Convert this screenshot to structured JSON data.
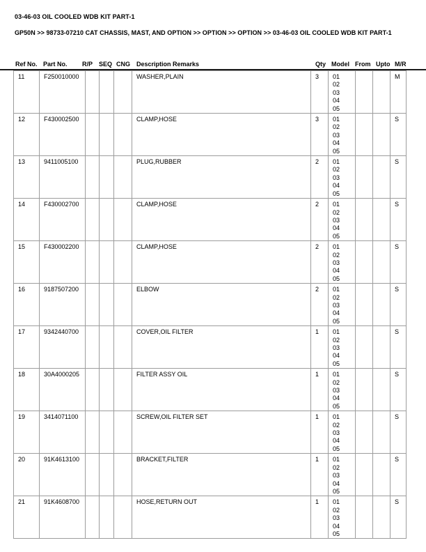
{
  "header": {
    "title": "03-46-03 OIL COOLED WDB KIT PART-1",
    "breadcrumb": "GP50N >> 98733-07210 CAT CHASSIS, MAST, AND OPTION >> OPTION >> OPTION >> 03-46-03 OIL COOLED WDB KIT PART-1"
  },
  "table": {
    "columns": [
      "Ref No.",
      "Part No.",
      "R/P",
      "SEQ",
      "CNG",
      "Description Remarks",
      "Qty",
      "Model",
      "From",
      "Upto",
      "M/R"
    ],
    "rows": [
      {
        "ref": "11",
        "part": "F250010000",
        "rp": "",
        "seq": "",
        "cng": "",
        "description": "WASHER,PLAIN",
        "qty": "3",
        "model": [
          "01",
          "02",
          "03",
          "04",
          "05"
        ],
        "from": "",
        "upto": "",
        "mr": "M"
      },
      {
        "ref": "12",
        "part": "F430002500",
        "rp": "",
        "seq": "",
        "cng": "",
        "description": "CLAMP,HOSE",
        "qty": "3",
        "model": [
          "01",
          "02",
          "03",
          "04",
          "05"
        ],
        "from": "",
        "upto": "",
        "mr": "S"
      },
      {
        "ref": "13",
        "part": "9411005100",
        "rp": "",
        "seq": "",
        "cng": "",
        "description": "PLUG,RUBBER",
        "qty": "2",
        "model": [
          "01",
          "02",
          "03",
          "04",
          "05"
        ],
        "from": "",
        "upto": "",
        "mr": "S"
      },
      {
        "ref": "14",
        "part": "F430002700",
        "rp": "",
        "seq": "",
        "cng": "",
        "description": "CLAMP,HOSE",
        "qty": "2",
        "model": [
          "01",
          "02",
          "03",
          "04",
          "05"
        ],
        "from": "",
        "upto": "",
        "mr": "S"
      },
      {
        "ref": "15",
        "part": "F430002200",
        "rp": "",
        "seq": "",
        "cng": "",
        "description": "CLAMP,HOSE",
        "qty": "2",
        "model": [
          "01",
          "02",
          "03",
          "04",
          "05"
        ],
        "from": "",
        "upto": "",
        "mr": "S"
      },
      {
        "ref": "16",
        "part": "9187507200",
        "rp": "",
        "seq": "",
        "cng": "",
        "description": "ELBOW",
        "qty": "2",
        "model": [
          "01",
          "02",
          "03",
          "04",
          "05"
        ],
        "from": "",
        "upto": "",
        "mr": "S"
      },
      {
        "ref": "17",
        "part": "9342440700",
        "rp": "",
        "seq": "",
        "cng": "",
        "description": "COVER,OIL FILTER",
        "qty": "1",
        "model": [
          "01",
          "02",
          "03",
          "04",
          "05"
        ],
        "from": "",
        "upto": "",
        "mr": "S"
      },
      {
        "ref": "18",
        "part": "30A4000205",
        "rp": "",
        "seq": "",
        "cng": "",
        "description": "FILTER ASSY OIL",
        "qty": "1",
        "model": [
          "01",
          "02",
          "03",
          "04",
          "05"
        ],
        "from": "",
        "upto": "",
        "mr": "S"
      },
      {
        "ref": "19",
        "part": "3414071100",
        "rp": "",
        "seq": "",
        "cng": "",
        "description": "SCREW,OIL FILTER SET",
        "qty": "1",
        "model": [
          "01",
          "02",
          "03",
          "04",
          "05"
        ],
        "from": "",
        "upto": "",
        "mr": "S"
      },
      {
        "ref": "20",
        "part": "91K4613100",
        "rp": "",
        "seq": "",
        "cng": "",
        "description": "BRACKET,FILTER",
        "qty": "1",
        "model": [
          "01",
          "02",
          "03",
          "04",
          "05"
        ],
        "from": "",
        "upto": "",
        "mr": "S"
      },
      {
        "ref": "21",
        "part": "91K4608700",
        "rp": "",
        "seq": "",
        "cng": "",
        "description": "HOSE,RETURN OUT",
        "qty": "1",
        "model": [
          "01",
          "02",
          "03",
          "04",
          "05"
        ],
        "from": "",
        "upto": "",
        "mr": "S"
      }
    ]
  },
  "colors": {
    "background": "#ffffff",
    "text": "#000000",
    "header_rule": "#1a1a1a",
    "grid": "#9c9c9c"
  }
}
